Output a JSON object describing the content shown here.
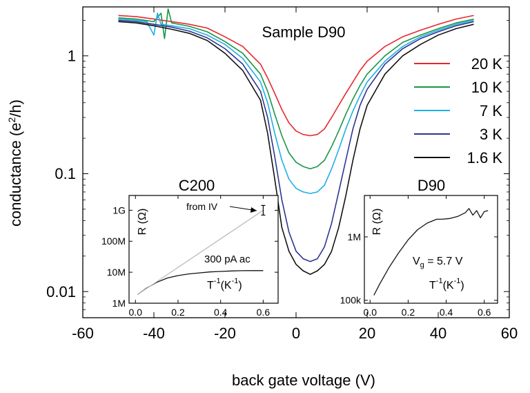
{
  "chart_data": [
    {
      "type": "line",
      "title": "Sample D90",
      "xlabel": "back gate voltage (V)",
      "ylabel_main": "conductance (e",
      "ylabel_sup": "2",
      "ylabel_tail": "/h)",
      "xlim": [
        -60,
        60
      ],
      "ylim": [
        0.006,
        2.6
      ],
      "yscale": "log",
      "xticks": [
        -60,
        -40,
        -20,
        0,
        20,
        40,
        60
      ],
      "xtick_labels": [
        "-60",
        "-40",
        "-20",
        "0",
        "20",
        "40",
        "60"
      ],
      "yticks": [
        1,
        0.1,
        0.01
      ],
      "ytick_labels": [
        "1",
        "0.1",
        "0.01"
      ],
      "legend": "right",
      "series": [
        {
          "name": "20 K",
          "color": "#e8262c",
          "x": [
            -50,
            -45,
            -40,
            -35,
            -30,
            -25,
            -20,
            -15,
            -10,
            -8,
            -6,
            -4,
            -2,
            0,
            2,
            4,
            6,
            8,
            10,
            12,
            14,
            16,
            18,
            20,
            25,
            30,
            35,
            40,
            45,
            50
          ],
          "y": [
            2.2,
            2.15,
            2.05,
            1.95,
            1.85,
            1.72,
            1.45,
            1.2,
            0.85,
            0.65,
            0.48,
            0.35,
            0.27,
            0.23,
            0.215,
            0.21,
            0.215,
            0.24,
            0.3,
            0.38,
            0.48,
            0.6,
            0.75,
            0.9,
            1.2,
            1.45,
            1.65,
            1.85,
            2.05,
            2.2
          ]
        },
        {
          "name": "10 K",
          "color": "#1a9645",
          "x": [
            -50,
            -45,
            -40,
            -38,
            -37,
            -36,
            -35,
            -30,
            -25,
            -20,
            -15,
            -10,
            -8,
            -6,
            -4,
            -2,
            0,
            2,
            4,
            6,
            8,
            10,
            12,
            14,
            16,
            18,
            20,
            25,
            30,
            35,
            40,
            45,
            50
          ],
          "y": [
            2.1,
            2.05,
            1.95,
            2.3,
            1.4,
            2.5,
            1.9,
            1.78,
            1.6,
            1.32,
            1.05,
            0.7,
            0.5,
            0.32,
            0.21,
            0.15,
            0.125,
            0.115,
            0.11,
            0.115,
            0.13,
            0.17,
            0.23,
            0.32,
            0.43,
            0.56,
            0.7,
            1.0,
            1.3,
            1.5,
            1.7,
            1.9,
            2.05
          ]
        },
        {
          "name": "7 K",
          "color": "#1eaee6",
          "x": [
            -50,
            -45,
            -42,
            -40,
            -39,
            -38,
            -35,
            -30,
            -25,
            -20,
            -15,
            -10,
            -8,
            -6,
            -4,
            -2,
            0,
            2,
            4,
            6,
            8,
            10,
            12,
            14,
            16,
            18,
            20,
            25,
            30,
            35,
            40,
            45,
            50
          ],
          "y": [
            2.05,
            2.0,
            1.95,
            1.5,
            2.3,
            1.85,
            1.8,
            1.7,
            1.5,
            1.25,
            0.95,
            0.6,
            0.4,
            0.22,
            0.13,
            0.09,
            0.075,
            0.07,
            0.068,
            0.07,
            0.08,
            0.11,
            0.16,
            0.24,
            0.34,
            0.46,
            0.6,
            0.9,
            1.2,
            1.45,
            1.65,
            1.85,
            2.0
          ]
        },
        {
          "name": "3 K",
          "color": "#2d3590",
          "x": [
            -50,
            -45,
            -40,
            -35,
            -30,
            -25,
            -20,
            -15,
            -10,
            -8,
            -6,
            -4,
            -2,
            0,
            2,
            4,
            6,
            8,
            10,
            12,
            14,
            16,
            18,
            20,
            25,
            30,
            35,
            40,
            45,
            50
          ],
          "y": [
            2.0,
            1.95,
            1.85,
            1.75,
            1.62,
            1.42,
            1.15,
            0.85,
            0.5,
            0.3,
            0.14,
            0.06,
            0.032,
            0.022,
            0.019,
            0.018,
            0.019,
            0.024,
            0.038,
            0.07,
            0.13,
            0.24,
            0.38,
            0.52,
            0.85,
            1.15,
            1.4,
            1.6,
            1.8,
            1.95
          ]
        },
        {
          "name": "1.6 K",
          "color": "#111111",
          "x": [
            -50,
            -45,
            -40,
            -35,
            -30,
            -25,
            -20,
            -15,
            -10,
            -8,
            -6,
            -4,
            -2,
            0,
            2,
            4,
            6,
            8,
            10,
            12,
            14,
            16,
            18,
            20,
            25,
            30,
            35,
            40,
            45,
            50
          ],
          "y": [
            1.95,
            1.9,
            1.8,
            1.68,
            1.55,
            1.35,
            1.05,
            0.75,
            0.42,
            0.22,
            0.09,
            0.035,
            0.022,
            0.017,
            0.015,
            0.014,
            0.015,
            0.017,
            0.022,
            0.035,
            0.065,
            0.13,
            0.24,
            0.38,
            0.7,
            1.0,
            1.25,
            1.5,
            1.7,
            1.85
          ]
        }
      ]
    },
    {
      "type": "line",
      "title": "C200",
      "ylabel": "R (Ω)",
      "xlabel_main": "T",
      "xlabel_sup": "-1",
      "xlabel_tail": "(K",
      "xlabel_sup2": "-1",
      "xlabel_end": ")",
      "xlim": [
        -0.03,
        0.67
      ],
      "ylim": [
        1000000,
        3000000000
      ],
      "yscale": "log",
      "xticks": [
        0.0,
        0.2,
        0.4,
        0.6
      ],
      "xtick_labels": [
        "0.0",
        "0.2",
        "0.4",
        "0.6"
      ],
      "yticks": [
        1000000,
        10000000,
        100000000,
        1000000000
      ],
      "ytick_labels": [
        "1M",
        "10M",
        "100M",
        "1G"
      ],
      "annotations": {
        "from_iv": "from IV",
        "ac": "300 pA ac"
      },
      "series": [
        {
          "name": "300 pA ac",
          "color": "#111111",
          "x": [
            0.01,
            0.05,
            0.1,
            0.15,
            0.2,
            0.25,
            0.3,
            0.35,
            0.4,
            0.45,
            0.5,
            0.55,
            0.6
          ],
          "y": [
            1900000,
            3000000,
            4700000,
            6500000,
            7800000,
            8800000,
            9500000,
            10200000,
            10600000,
            11000000,
            11200000,
            11300000,
            11300000
          ]
        },
        {
          "name": "from IV",
          "color": "#bbbbbb",
          "x": [
            0.01,
            0.6
          ],
          "y": [
            1900000,
            1000000000
          ]
        }
      ]
    },
    {
      "type": "line",
      "title": "D90",
      "ylabel": "R (Ω)",
      "xlabel_main": "T",
      "xlabel_sup": "-1",
      "xlabel_tail": "(K",
      "xlabel_sup2": "-1",
      "xlabel_end": ")",
      "xlim": [
        -0.03,
        0.67
      ],
      "ylim": [
        90000,
        4500000
      ],
      "yscale": "log",
      "xticks": [
        0.0,
        0.2,
        0.4,
        0.6
      ],
      "xtick_labels": [
        "0.0",
        "0.2",
        "0.4",
        "0.6"
      ],
      "yticks": [
        100000,
        1000000
      ],
      "ytick_labels": [
        "100k",
        "1M"
      ],
      "annotations": {
        "vg_main": "V",
        "vg_sub": "g",
        "vg_tail": " = 5.7 V"
      },
      "series": [
        {
          "name": "D90",
          "color": "#111111",
          "x": [
            0.02,
            0.05,
            0.1,
            0.15,
            0.2,
            0.25,
            0.3,
            0.35,
            0.38,
            0.42,
            0.46,
            0.5,
            0.52,
            0.54,
            0.56,
            0.58,
            0.6,
            0.62
          ],
          "y": [
            120000,
            180000,
            330000,
            560000,
            900000,
            1300000,
            1650000,
            1900000,
            1900000,
            1950000,
            2100000,
            2400000,
            2800000,
            2200000,
            2600000,
            2000000,
            2500000,
            2600000
          ]
        }
      ]
    }
  ]
}
